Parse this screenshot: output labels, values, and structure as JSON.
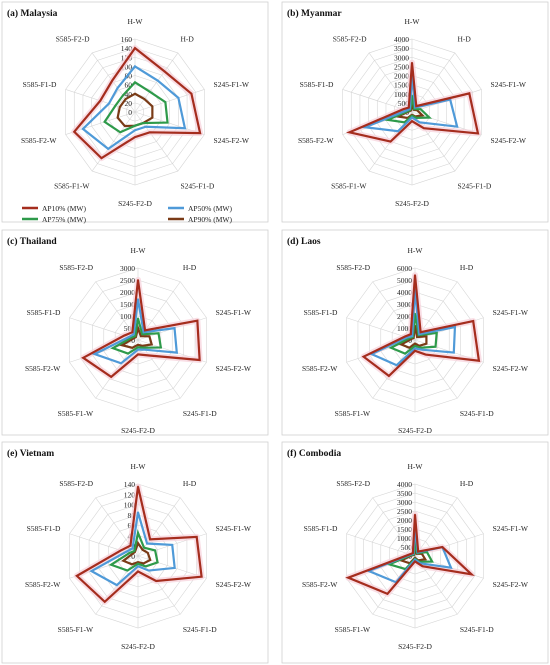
{
  "colors": {
    "AP10": "#a52d1e",
    "AP50": "#4f9ad8",
    "AP75": "#2e9a4a",
    "AP90": "#7a3b17",
    "highlight": "#f4b6c8"
  },
  "legend": [
    {
      "key": "AP10",
      "label": "AP10% (MW)"
    },
    {
      "key": "AP50",
      "label": "AP50% (MW)"
    },
    {
      "key": "AP75",
      "label": "AP75% (MW)"
    },
    {
      "key": "AP90",
      "label": "AP90% (MW)"
    }
  ],
  "chart_data": [
    {
      "type": "radar",
      "title": "(a) Malaysia",
      "axes": [
        "H-W",
        "H-D",
        "S245-F1-W",
        "S245-F2-W",
        "S245-F1-D",
        "S245-F2-D",
        "S585-F1-W",
        "S585-F2-W",
        "S585-F1-D",
        "S585-F2-D"
      ],
      "ticks": [
        0,
        20,
        40,
        60,
        80,
        100,
        120,
        140,
        160
      ],
      "rmax": 160,
      "series": [
        {
          "key": "AP10",
          "name": "AP10% (MW)",
          "values": [
            140,
            110,
            130,
            150,
            55,
            55,
            125,
            140,
            80,
            85
          ]
        },
        {
          "key": "AP50",
          "name": "AP50% (MW)",
          "values": [
            100,
            85,
            100,
            115,
            40,
            40,
            100,
            120,
            60,
            65
          ]
        },
        {
          "key": "AP75",
          "name": "AP75% (MW)",
          "values": [
            65,
            55,
            70,
            75,
            30,
            30,
            55,
            70,
            45,
            45
          ]
        },
        {
          "key": "AP90",
          "name": "AP90% (MW)",
          "values": [
            40,
            35,
            40,
            40,
            30,
            30,
            38,
            40,
            35,
            35
          ]
        }
      ]
    },
    {
      "type": "radar",
      "title": "(b) Myanmar",
      "axes": [
        "H-W",
        "H-D",
        "S245-F1-W",
        "S245-F2-W",
        "S245-F1-D",
        "S245-F2-D",
        "S585-F1-W",
        "S585-F2-W",
        "S585-F1-D",
        "S585-F2-D"
      ],
      "ticks": [
        0,
        500,
        1000,
        1500,
        2000,
        2500,
        3000,
        3500,
        4000
      ],
      "rmax": 4000,
      "series": [
        {
          "key": "AP10",
          "name": "AP10% (MW)",
          "values": [
            2700,
            400,
            3300,
            3800,
            1100,
            500,
            2000,
            3600,
            500,
            300
          ]
        },
        {
          "key": "AP50",
          "name": "AP50% (MW)",
          "values": [
            2000,
            300,
            2200,
            2600,
            700,
            300,
            1300,
            2700,
            300,
            200
          ]
        },
        {
          "key": "AP75",
          "name": "AP75% (MW)",
          "values": [
            900,
            200,
            500,
            1000,
            400,
            200,
            700,
            1400,
            200,
            150
          ]
        },
        {
          "key": "AP90",
          "name": "AP90% (MW)",
          "values": [
            500,
            150,
            300,
            600,
            300,
            150,
            400,
            800,
            150,
            100
          ]
        }
      ]
    },
    {
      "type": "radar",
      "title": "(c) Thailand",
      "axes": [
        "H-W",
        "H-D",
        "S245-F1-W",
        "S245-F2-W",
        "S245-F1-D",
        "S245-F2-D",
        "S585-F1-W",
        "S585-F2-W",
        "S585-F1-D",
        "S585-F2-D"
      ],
      "ticks": [
        0,
        500,
        1000,
        1500,
        2000,
        2500,
        3000
      ],
      "rmax": 3000,
      "series": [
        {
          "key": "AP10",
          "name": "AP10% (MW)",
          "values": [
            2500,
            500,
            2600,
            2700,
            800,
            600,
            1900,
            2400,
            600,
            400
          ]
        },
        {
          "key": "AP50",
          "name": "AP50% (MW)",
          "values": [
            1700,
            400,
            1600,
            1700,
            500,
            400,
            1200,
            1900,
            400,
            300
          ]
        },
        {
          "key": "AP75",
          "name": "AP75% (MW)",
          "values": [
            900,
            300,
            900,
            1000,
            400,
            300,
            700,
            1100,
            300,
            200
          ]
        },
        {
          "key": "AP90",
          "name": "AP90% (MW)",
          "values": [
            500,
            200,
            500,
            600,
            300,
            200,
            400,
            700,
            200,
            150
          ]
        }
      ]
    },
    {
      "type": "radar",
      "title": "(d) Laos",
      "axes": [
        "H-W",
        "H-D",
        "S245-F1-W",
        "S245-F2-W",
        "S245-F1-D",
        "S245-F2-D",
        "S585-F1-W",
        "S585-F2-W",
        "S585-F1-D",
        "S585-F2-D"
      ],
      "ticks": [
        0,
        1000,
        2000,
        3000,
        4000,
        5000,
        6000
      ],
      "rmax": 6000,
      "series": [
        {
          "key": "AP10",
          "name": "AP10% (MW)",
          "values": [
            5400,
            800,
            5100,
            5600,
            1500,
            900,
            3700,
            4500,
            900,
            600
          ]
        },
        {
          "key": "AP50",
          "name": "AP50% (MW)",
          "values": [
            4200,
            600,
            3500,
            3400,
            1000,
            700,
            2600,
            3800,
            700,
            400
          ]
        },
        {
          "key": "AP75",
          "name": "AP75% (MW)",
          "values": [
            2200,
            500,
            1900,
            1800,
            800,
            500,
            1400,
            2100,
            500,
            300
          ]
        },
        {
          "key": "AP90",
          "name": "AP90% (MW)",
          "values": [
            1200,
            300,
            1000,
            1000,
            600,
            300,
            800,
            1200,
            300,
            200
          ]
        }
      ]
    },
    {
      "type": "radar",
      "title": "(e) Vietnam",
      "axes": [
        "H-W",
        "H-D",
        "S245-F1-W",
        "S245-F2-W",
        "S245-F1-D",
        "S245-F2-D",
        "S585-F1-W",
        "S585-F2-W",
        "S585-F1-D",
        "S585-F2-D"
      ],
      "ticks": [
        0,
        20,
        40,
        60,
        80,
        100,
        120,
        140
      ],
      "rmax": 140,
      "series": [
        {
          "key": "AP10",
          "name": "AP10% (MW)",
          "values": [
            135,
            40,
            120,
            130,
            60,
            30,
            110,
            125,
            35,
            25
          ]
        },
        {
          "key": "AP50",
          "name": "AP50% (MW)",
          "values": [
            85,
            30,
            70,
            75,
            35,
            20,
            70,
            95,
            25,
            18
          ]
        },
        {
          "key": "AP75",
          "name": "AP75% (MW)",
          "values": [
            45,
            20,
            35,
            40,
            25,
            15,
            35,
            55,
            18,
            12
          ]
        },
        {
          "key": "AP90",
          "name": "AP90% (MW)",
          "values": [
            25,
            15,
            20,
            25,
            18,
            12,
            20,
            30,
            12,
            10
          ]
        }
      ]
    },
    {
      "type": "radar",
      "title": "(f) Combodia",
      "axes": [
        "H-W",
        "H-D",
        "S245-F1-W",
        "S245-F2-W",
        "S245-F1-D",
        "S245-F2-D",
        "S585-F1-W",
        "S585-F2-W",
        "S585-F1-D",
        "S585-F2-D"
      ],
      "ticks": [
        0,
        500,
        1000,
        1500,
        2000,
        2500,
        3000,
        3500,
        4000
      ],
      "rmax": 4000,
      "series": [
        {
          "key": "AP10",
          "name": "AP10% (MW)",
          "values": [
            2300,
            300,
            1600,
            3300,
            700,
            300,
            2600,
            3900,
            300,
            200
          ]
        },
        {
          "key": "AP50",
          "name": "AP50% (MW)",
          "values": [
            1600,
            250,
            1600,
            2100,
            500,
            200,
            1800,
            2700,
            250,
            150
          ]
        },
        {
          "key": "AP75",
          "name": "AP75% (MW)",
          "values": [
            900,
            200,
            700,
            1000,
            400,
            150,
            900,
            1500,
            200,
            100
          ]
        },
        {
          "key": "AP90",
          "name": "AP90% (MW)",
          "values": [
            500,
            150,
            400,
            600,
            300,
            100,
            500,
            800,
            150,
            80
          ]
        }
      ]
    }
  ]
}
